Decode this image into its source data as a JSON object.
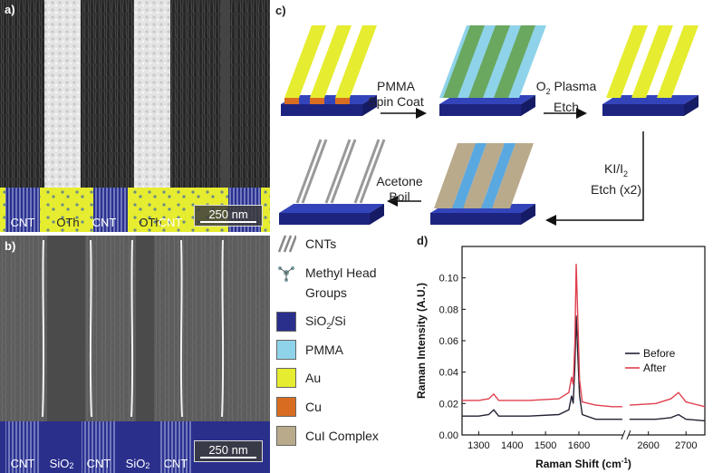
{
  "panels": {
    "a": {
      "label": "a)",
      "bands": [
        "CNT",
        "OTh",
        "CNT",
        "OTh",
        "CNT"
      ],
      "scale": "250 nm"
    },
    "b": {
      "label": "b)",
      "bands": [
        "CNT",
        "SiO",
        "CNT",
        "SiO",
        "CNT"
      ],
      "sub": "2",
      "scale": "250 nm"
    },
    "c": {
      "label": "c)"
    },
    "d": {
      "label": "d)"
    }
  },
  "steps": {
    "s1_line1": "PMMA",
    "s1_line2": "Spin Coat",
    "s2_o": "O",
    "s2_sub": "2",
    "s2_line1": " Plasma",
    "s2_line2": "Etch",
    "s3_line1": "KI/I",
    "s3_sub": "2",
    "s3_line2": "Etch (x2)",
    "s4_line1": "Acetone",
    "s4_line2": "Boil"
  },
  "legend": [
    {
      "label": "CNTs",
      "icon": "cnt-icon"
    },
    {
      "label": "Methyl Head",
      "label2": "Groups",
      "icon": "methyl-icon"
    },
    {
      "label": "SiO",
      "sub": "2",
      "suffix": "/Si",
      "color": "#2a2f8c"
    },
    {
      "label": "PMMA",
      "color": "#8fd3ea"
    },
    {
      "label": "Au",
      "color": "#e6ec2f"
    },
    {
      "label": "Cu",
      "color": "#d86d22"
    },
    {
      "label": "CuI Complex",
      "color": "#b9aa8c"
    }
  ],
  "chart_data": {
    "type": "line",
    "xlabel": "Raman Shift (cm",
    "xlabel_sup": "-1",
    "xlabel_end": ")",
    "ylabel": "Raman Intensity (A.U.)",
    "x_segments": [
      [
        1250,
        1730
      ],
      [
        2550,
        2750
      ]
    ],
    "ylim": [
      0,
      0.12
    ],
    "x_ticks": [
      1300,
      1400,
      1500,
      1600,
      2600,
      2700
    ],
    "y_ticks": [
      0.0,
      0.02,
      0.04,
      0.06,
      0.08,
      0.1
    ],
    "y_tick_labels": [
      "0.00",
      "0.02",
      "0.04",
      "0.06",
      "0.08",
      "0.10"
    ],
    "series": [
      {
        "name": "Before",
        "color": "#222233",
        "points": [
          [
            1250,
            0.012
          ],
          [
            1300,
            0.012
          ],
          [
            1330,
            0.013
          ],
          [
            1345,
            0.016
          ],
          [
            1360,
            0.012
          ],
          [
            1450,
            0.012
          ],
          [
            1540,
            0.013
          ],
          [
            1570,
            0.016
          ],
          [
            1578,
            0.025
          ],
          [
            1583,
            0.02
          ],
          [
            1588,
            0.045
          ],
          [
            1592,
            0.076
          ],
          [
            1596,
            0.055
          ],
          [
            1602,
            0.025
          ],
          [
            1610,
            0.013
          ],
          [
            1650,
            0.01
          ],
          [
            1700,
            0.01
          ],
          [
            1730,
            0.01
          ],
          [
            2550,
            0.01
          ],
          [
            2620,
            0.01
          ],
          [
            2660,
            0.011
          ],
          [
            2680,
            0.013
          ],
          [
            2700,
            0.01
          ],
          [
            2750,
            0.009
          ]
        ]
      },
      {
        "name": "After",
        "color": "#e0404f",
        "points": [
          [
            1250,
            0.022
          ],
          [
            1300,
            0.022
          ],
          [
            1330,
            0.023
          ],
          [
            1345,
            0.026
          ],
          [
            1360,
            0.022
          ],
          [
            1450,
            0.022
          ],
          [
            1540,
            0.023
          ],
          [
            1570,
            0.027
          ],
          [
            1578,
            0.037
          ],
          [
            1583,
            0.032
          ],
          [
            1588,
            0.06
          ],
          [
            1592,
            0.109
          ],
          [
            1596,
            0.08
          ],
          [
            1602,
            0.035
          ],
          [
            1610,
            0.021
          ],
          [
            1650,
            0.019
          ],
          [
            1700,
            0.018
          ],
          [
            1730,
            0.018
          ],
          [
            2550,
            0.019
          ],
          [
            2620,
            0.02
          ],
          [
            2660,
            0.023
          ],
          [
            2680,
            0.027
          ],
          [
            2700,
            0.021
          ],
          [
            2750,
            0.018
          ]
        ]
      }
    ],
    "legend_placement": "right"
  }
}
